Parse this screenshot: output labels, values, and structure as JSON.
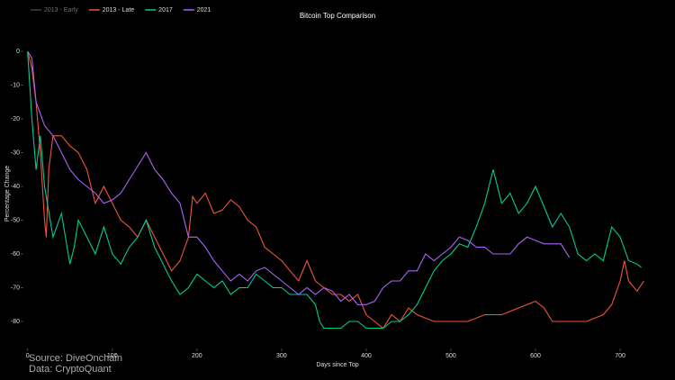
{
  "chart_data": {
    "type": "line",
    "title": "Bitcoin Top Comparison",
    "x_label": "Days since Top",
    "y_label": "Percentage Change",
    "xlim": [
      -5,
      735
    ],
    "ylim": [
      -88,
      7
    ],
    "xticks": [
      0,
      100,
      200,
      300,
      400,
      500,
      600,
      700
    ],
    "yticks": [
      0,
      -10,
      -20,
      -30,
      -40,
      -50,
      -60,
      -70,
      -80
    ],
    "legend": "top-left",
    "annotations": [
      "Source: DiveOnchain",
      "Data: CryptoQuant"
    ],
    "series": [
      {
        "name": "2013 - Early",
        "color": "#7f7f7f",
        "visible": false,
        "x": [],
        "values": []
      },
      {
        "name": "2013 - Late",
        "color": "#ef553b",
        "visible": true,
        "x": [
          0,
          5,
          10,
          15,
          20,
          22,
          25,
          30,
          40,
          50,
          60,
          70,
          80,
          90,
          100,
          110,
          120,
          130,
          140,
          150,
          160,
          170,
          180,
          190,
          195,
          200,
          210,
          220,
          230,
          240,
          250,
          260,
          270,
          280,
          290,
          300,
          310,
          320,
          330,
          340,
          350,
          360,
          370,
          380,
          390,
          400,
          410,
          420,
          430,
          440,
          450,
          460,
          470,
          480,
          500,
          520,
          540,
          560,
          580,
          600,
          610,
          620,
          630,
          640,
          660,
          680,
          690,
          700,
          705,
          710,
          720,
          728
        ],
        "values": [
          0,
          -5,
          -15,
          -30,
          -50,
          -55,
          -35,
          -25,
          -25,
          -28,
          -30,
          -35,
          -45,
          -40,
          -45,
          -50,
          -52,
          -55,
          -50,
          -55,
          -60,
          -65,
          -62,
          -55,
          -43,
          -45,
          -42,
          -48,
          -47,
          -44,
          -46,
          -50,
          -52,
          -58,
          -60,
          -62,
          -65,
          -68,
          -62,
          -68,
          -70,
          -72,
          -72,
          -74,
          -72,
          -78,
          -80,
          -82,
          -78,
          -80,
          -76,
          -78,
          -79,
          -80,
          -80,
          -80,
          -78,
          -78,
          -76,
          -74,
          -76,
          -80,
          -80,
          -80,
          -80,
          -78,
          -75,
          -68,
          -62,
          -68,
          -71,
          -68
        ]
      },
      {
        "name": "2017",
        "color": "#00cc96",
        "visible": true,
        "x": [
          0,
          5,
          10,
          15,
          20,
          30,
          40,
          50,
          55,
          60,
          70,
          80,
          90,
          100,
          110,
          120,
          130,
          140,
          150,
          160,
          170,
          180,
          190,
          200,
          210,
          220,
          230,
          240,
          250,
          260,
          270,
          280,
          290,
          300,
          310,
          320,
          330,
          340,
          345,
          350,
          360,
          370,
          380,
          390,
          400,
          410,
          420,
          430,
          440,
          450,
          460,
          470,
          480,
          490,
          500,
          510,
          520,
          530,
          540,
          550,
          560,
          570,
          580,
          590,
          600,
          610,
          620,
          630,
          640,
          650,
          660,
          670,
          680,
          690,
          700,
          710,
          720,
          725
        ],
        "values": [
          0,
          -20,
          -35,
          -25,
          -40,
          -55,
          -48,
          -63,
          -58,
          -50,
          -55,
          -60,
          -52,
          -60,
          -63,
          -58,
          -55,
          -50,
          -58,
          -63,
          -68,
          -72,
          -70,
          -66,
          -68,
          -70,
          -68,
          -72,
          -70,
          -70,
          -66,
          -68,
          -70,
          -70,
          -72,
          -72,
          -72,
          -75,
          -80,
          -82,
          -82,
          -82,
          -80,
          -80,
          -82,
          -82,
          -82,
          -80,
          -80,
          -78,
          -75,
          -70,
          -65,
          -62,
          -60,
          -57,
          -58,
          -52,
          -45,
          -35,
          -45,
          -42,
          -48,
          -45,
          -40,
          -46,
          -52,
          -48,
          -52,
          -60,
          -62,
          -60,
          -62,
          -52,
          -55,
          -62,
          -63,
          -64
        ]
      },
      {
        "name": "2021",
        "color": "#ab63fa",
        "visible": true,
        "x": [
          0,
          5,
          10,
          20,
          30,
          40,
          50,
          60,
          70,
          80,
          90,
          100,
          110,
          120,
          130,
          140,
          150,
          160,
          170,
          180,
          190,
          200,
          210,
          220,
          230,
          240,
          250,
          260,
          270,
          280,
          290,
          300,
          310,
          320,
          330,
          340,
          350,
          360,
          370,
          380,
          390,
          400,
          410,
          420,
          430,
          440,
          450,
          460,
          470,
          480,
          490,
          500,
          510,
          520,
          530,
          540,
          550,
          560,
          570,
          580,
          590,
          600,
          610,
          620,
          630,
          640
        ],
        "values": [
          0,
          -2,
          -15,
          -22,
          -25,
          -30,
          -35,
          -38,
          -40,
          -42,
          -45,
          -44,
          -42,
          -38,
          -34,
          -30,
          -35,
          -38,
          -42,
          -45,
          -55,
          -55,
          -58,
          -62,
          -65,
          -68,
          -66,
          -68,
          -65,
          -64,
          -66,
          -68,
          -70,
          -72,
          -70,
          -72,
          -70,
          -71,
          -74,
          -72,
          -75,
          -75,
          -74,
          -70,
          -68,
          -68,
          -65,
          -65,
          -60,
          -62,
          -60,
          -58,
          -55,
          -56,
          -58,
          -58,
          -60,
          -60,
          -60,
          -57,
          -55,
          -56,
          -57,
          -57,
          -57,
          -61
        ]
      }
    ]
  }
}
